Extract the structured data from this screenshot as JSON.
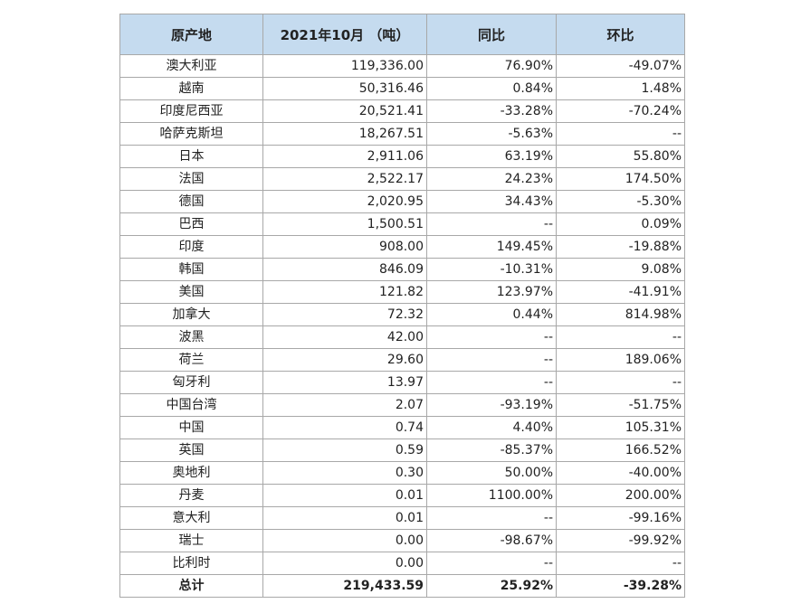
{
  "table": {
    "headers": {
      "origin": "原产地",
      "volume": "2021年10月 （吨）",
      "yoy": "同比",
      "mom": "环比"
    },
    "rows": [
      {
        "origin": "澳大利亚",
        "volume": "119,336.00",
        "yoy": "76.90%",
        "mom": "-49.07%"
      },
      {
        "origin": "越南",
        "volume": "50,316.46",
        "yoy": "0.84%",
        "mom": "1.48%"
      },
      {
        "origin": "印度尼西亚",
        "volume": "20,521.41",
        "yoy": "-33.28%",
        "mom": "-70.24%"
      },
      {
        "origin": "哈萨克斯坦",
        "volume": "18,267.51",
        "yoy": "-5.63%",
        "mom": "--"
      },
      {
        "origin": "日本",
        "volume": "2,911.06",
        "yoy": "63.19%",
        "mom": "55.80%"
      },
      {
        "origin": "法国",
        "volume": "2,522.17",
        "yoy": "24.23%",
        "mom": "174.50%"
      },
      {
        "origin": "德国",
        "volume": "2,020.95",
        "yoy": "34.43%",
        "mom": "-5.30%"
      },
      {
        "origin": "巴西",
        "volume": "1,500.51",
        "yoy": "--",
        "mom": "0.09%"
      },
      {
        "origin": "印度",
        "volume": "908.00",
        "yoy": "149.45%",
        "mom": "-19.88%"
      },
      {
        "origin": "韩国",
        "volume": "846.09",
        "yoy": "-10.31%",
        "mom": "9.08%"
      },
      {
        "origin": "美国",
        "volume": "121.82",
        "yoy": "123.97%",
        "mom": "-41.91%"
      },
      {
        "origin": "加拿大",
        "volume": "72.32",
        "yoy": "0.44%",
        "mom": "814.98%"
      },
      {
        "origin": "波黑",
        "volume": "42.00",
        "yoy": "--",
        "mom": "--"
      },
      {
        "origin": "荷兰",
        "volume": "29.60",
        "yoy": "--",
        "mom": "189.06%"
      },
      {
        "origin": "匈牙利",
        "volume": "13.97",
        "yoy": "--",
        "mom": "--"
      },
      {
        "origin": "中国台湾",
        "volume": "2.07",
        "yoy": "-93.19%",
        "mom": "-51.75%"
      },
      {
        "origin": "中国",
        "volume": "0.74",
        "yoy": "4.40%",
        "mom": "105.31%"
      },
      {
        "origin": "英国",
        "volume": "0.59",
        "yoy": "-85.37%",
        "mom": "166.52%"
      },
      {
        "origin": "奥地利",
        "volume": "0.30",
        "yoy": "50.00%",
        "mom": "-40.00%"
      },
      {
        "origin": "丹麦",
        "volume": "0.01",
        "yoy": "1100.00%",
        "mom": "200.00%"
      },
      {
        "origin": "意大利",
        "volume": "0.01",
        "yoy": "--",
        "mom": "-99.16%"
      },
      {
        "origin": "瑞士",
        "volume": "0.00",
        "yoy": "-98.67%",
        "mom": "-99.92%"
      },
      {
        "origin": "比利时",
        "volume": "0.00",
        "yoy": "--",
        "mom": "--"
      }
    ],
    "total": {
      "origin": "总计",
      "volume": "219,433.59",
      "yoy": "25.92%",
      "mom": "-39.28%"
    }
  },
  "colors": {
    "header_bg": "#c5dbef",
    "border": "#a8a8a8",
    "text": "#222222"
  }
}
